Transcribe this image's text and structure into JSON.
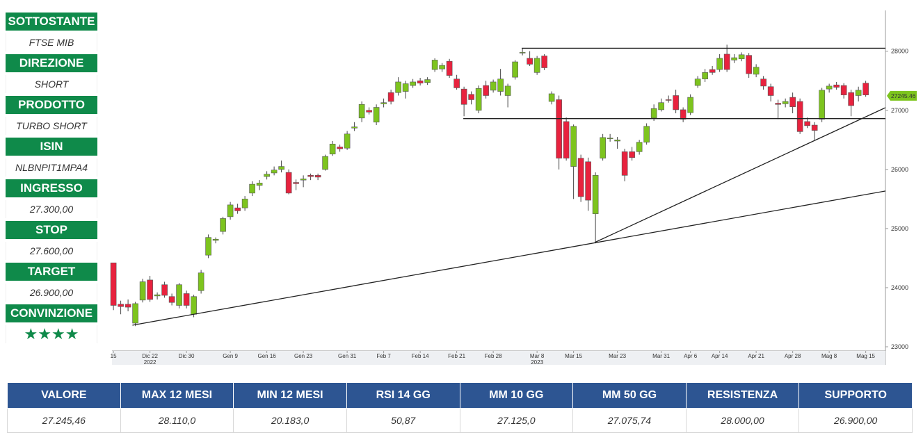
{
  "panel": [
    {
      "label": "SOTTOSTANTE",
      "value": "FTSE MIB"
    },
    {
      "label": "DIREZIONE",
      "value": "SHORT"
    },
    {
      "label": "PRODOTTO",
      "value": "TURBO SHORT"
    },
    {
      "label": "ISIN",
      "value": "NLBNPIT1MPA4"
    },
    {
      "label": "INGRESSO",
      "value": "27.300,00"
    },
    {
      "label": "STOP",
      "value": "27.600,00"
    },
    {
      "label": "TARGET",
      "value": "26.900,00"
    },
    {
      "label": "CONVINZIONE",
      "value": "★★★★"
    }
  ],
  "chart_data": {
    "type": "candlestick",
    "open": [
      24420,
      23720,
      23720,
      23400,
      23790,
      24130,
      23860,
      24050,
      23850,
      23700,
      23900,
      23550,
      23950,
      24550,
      24800,
      24950,
      25200,
      25350,
      25350,
      25600,
      25730,
      25880,
      25940,
      26000,
      25950,
      25780,
      25820,
      25900,
      25900,
      26000,
      26260,
      26380,
      26360,
      26700,
      26870,
      27000,
      26800,
      27110,
      27300,
      27300,
      27320,
      27420,
      27500,
      27470,
      27690,
      27700,
      27830,
      27530,
      27360,
      27270,
      27000,
      27420,
      27340,
      27320,
      27250,
      27560,
      27970,
      27880,
      27640,
      27920,
      27150,
      27180,
      26810,
      26050,
      26190,
      26130,
      25250,
      26190,
      26520,
      26480,
      26300,
      26300,
      26300,
      26460,
      26870,
      27010,
      27180,
      27250,
      27010,
      26960,
      27420,
      27530,
      27690,
      27690,
      27950,
      27850,
      27870,
      27930,
      27610,
      27530,
      27400,
      27120,
      27110,
      27220,
      27150,
      26810,
      26750,
      26850,
      27360,
      27430,
      27420,
      27300,
      27250,
      27460
    ],
    "high": [
      24420,
      23780,
      23800,
      23760,
      24150,
      24200,
      23920,
      24100,
      23900,
      24080,
      23950,
      23880,
      24300,
      24900,
      24850,
      25200,
      25450,
      25420,
      25550,
      25800,
      25820,
      25970,
      26050,
      26150,
      26000,
      25830,
      25900,
      25930,
      25930,
      26250,
      26480,
      26420,
      26650,
      26800,
      27150,
      27050,
      27100,
      27200,
      27350,
      27560,
      27500,
      27530,
      27550,
      27560,
      27880,
      27800,
      27870,
      27600,
      27400,
      27320,
      27420,
      27500,
      27520,
      27700,
      27450,
      27850,
      28050,
      28000,
      27920,
      27950,
      27320,
      27250,
      26880,
      26760,
      26250,
      26200,
      25950,
      26600,
      26600,
      26550,
      26350,
      26380,
      26500,
      26780,
      27100,
      27200,
      27250,
      27350,
      27050,
      27270,
      27580,
      27700,
      27750,
      27950,
      28110,
      27950,
      27980,
      27970,
      27780,
      27580,
      27450,
      27180,
      27200,
      27300,
      27200,
      26880,
      26800,
      27380,
      27450,
      27480,
      27460,
      27350,
      27400,
      27500
    ],
    "low": [
      23620,
      23550,
      23600,
      23350,
      23750,
      23760,
      23800,
      23830,
      23700,
      23650,
      23650,
      23500,
      23900,
      24500,
      24750,
      24900,
      25150,
      25250,
      25300,
      25550,
      25650,
      25830,
      25900,
      25950,
      25580,
      25650,
      25700,
      25820,
      25820,
      25980,
      26230,
      26300,
      26330,
      26650,
      26800,
      26930,
      26750,
      27050,
      27100,
      27250,
      27200,
      27380,
      27420,
      27430,
      27650,
      27650,
      27550,
      27350,
      26900,
      27100,
      26950,
      27200,
      27300,
      27250,
      27050,
      27520,
      27930,
      27750,
      27600,
      27680,
      27100,
      26000,
      26150,
      25500,
      25450,
      25300,
      24750,
      26150,
      26470,
      26350,
      25800,
      26150,
      26250,
      26420,
      26820,
      26980,
      27130,
      26950,
      26800,
      26920,
      27380,
      27480,
      27600,
      27650,
      27650,
      27800,
      27830,
      27550,
      27560,
      27350,
      27150,
      26850,
      27050,
      26950,
      26600,
      26700,
      26500,
      26800,
      27300,
      27350,
      27200,
      26900,
      27150,
      27230
    ],
    "close": [
      23700,
      23680,
      23670,
      23730,
      24100,
      23800,
      23880,
      23870,
      23750,
      24050,
      23700,
      23850,
      24250,
      24850,
      24820,
      25170,
      25400,
      25300,
      25500,
      25750,
      25770,
      25920,
      25990,
      26050,
      25600,
      25760,
      25840,
      25880,
      25870,
      26220,
      26430,
      26350,
      26600,
      26720,
      27100,
      26970,
      27050,
      27130,
      27150,
      27480,
      27450,
      27480,
      27460,
      27520,
      27850,
      27760,
      27590,
      27380,
      27100,
      27180,
      27370,
      27250,
      27480,
      27530,
      27410,
      27820,
      27980,
      27780,
      27880,
      27720,
      27280,
      26190,
      26190,
      26730,
      25540,
      25480,
      25900,
      26540,
      26530,
      26500,
      25900,
      26200,
      26460,
      26730,
      27030,
      27130,
      27170,
      27010,
      26850,
      27220,
      27530,
      27640,
      27640,
      27880,
      27690,
      27890,
      27940,
      27620,
      27730,
      27410,
      27250,
      27100,
      27150,
      27060,
      26640,
      26740,
      26660,
      27340,
      27410,
      27390,
      27260,
      27080,
      27340,
      27260
    ],
    "categories": [
      "15",
      null,
      null,
      null,
      null,
      "Dic 22",
      null,
      null,
      null,
      null,
      "Dic 30",
      null,
      null,
      null,
      null,
      null,
      "Gen 9",
      null,
      null,
      null,
      null,
      "Gen 16",
      null,
      null,
      null,
      null,
      "Gen 23",
      null,
      null,
      null,
      null,
      null,
      "Gen 31",
      null,
      null,
      null,
      null,
      "Feb 7",
      null,
      null,
      null,
      null,
      "Feb 14",
      null,
      null,
      null,
      null,
      "Feb 21",
      null,
      null,
      null,
      null,
      "Feb 28",
      null,
      null,
      null,
      null,
      null,
      "Mar 8",
      null,
      null,
      null,
      null,
      "Mar 15",
      null,
      null,
      null,
      null,
      null,
      "Mar 23",
      null,
      null,
      null,
      null,
      null,
      "Mar 31",
      null,
      null,
      null,
      "Apr 6",
      null,
      null,
      null,
      "Apr 14",
      null,
      null,
      null,
      null,
      "Apr 21",
      null,
      null,
      null,
      null,
      "Apr 28",
      null,
      null,
      null,
      null,
      "Mag 8",
      null,
      null,
      null,
      null,
      "Mag 15"
    ],
    "year_labels": [
      {
        "index": 5,
        "label": "2022"
      },
      {
        "index": 58,
        "label": "2023"
      }
    ],
    "xlim": [
      -0.2,
      105.7
    ],
    "ylim": [
      22930,
      28690
    ],
    "yticks": [
      23000,
      24000,
      25000,
      26000,
      27000,
      28000
    ],
    "up_color": "#7dc41e",
    "down_color": "#e8223e",
    "last_price": 27245.46,
    "last_price_color": "#7dc41e",
    "lines": [
      {
        "x": [
          55.9,
          105.7
        ],
        "y": [
          28050,
          28050
        ]
      },
      {
        "x": [
          47.9,
          105.7
        ],
        "y": [
          26860,
          26860
        ]
      },
      {
        "x": [
          2.6,
          105.7
        ],
        "y": [
          23365,
          25635
        ]
      },
      {
        "x": [
          65.9,
          105.7
        ],
        "y": [
          24765,
          27045
        ]
      }
    ]
  },
  "table": {
    "headers": [
      "VALORE",
      "MAX 12 MESI",
      "MIN 12 MESI",
      "RSI 14 GG",
      "MM 10 GG",
      "MM 50 GG",
      "RESISTENZA",
      "SUPPORTO"
    ],
    "values": [
      "27.245,46",
      "28.110,0",
      "20.183,0",
      "50,87",
      "27.125,0",
      "27.075,74",
      "28.000,00",
      "26.900,00"
    ]
  }
}
